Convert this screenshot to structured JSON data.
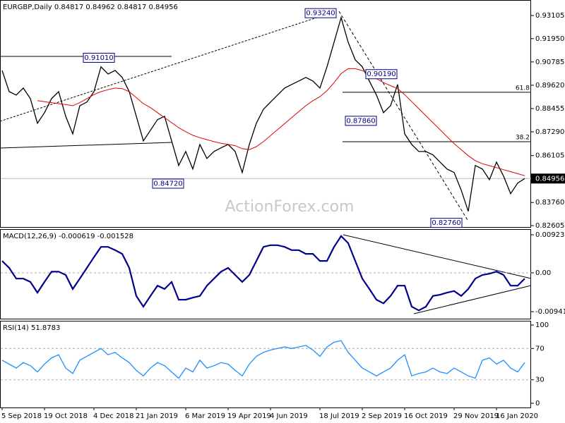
{
  "chart_data": [
    {
      "type": "line",
      "title": "EURGBP,Daily  0.84817 0.84962 0.84817 0.84956",
      "watermark": "ActionForex.com",
      "categories": [
        "5 Sep 2018",
        null,
        null,
        null,
        null,
        null,
        "19 Oct 2018",
        null,
        null,
        null,
        null,
        null,
        null,
        "4 Dec 2018",
        null,
        null,
        null,
        null,
        null,
        "21 Jan 2019",
        null,
        null,
        null,
        null,
        null,
        null,
        "6 Mar 2019",
        null,
        null,
        null,
        null,
        null,
        "19 Apr 2019",
        null,
        null,
        null,
        null,
        null,
        "4 Jun 2019",
        null,
        null,
        null,
        null,
        null,
        null,
        "18 Jul 2019",
        null,
        null,
        null,
        null,
        null,
        "2 Sep 2019",
        null,
        null,
        null,
        null,
        null,
        "16 Oct 2019",
        null,
        null,
        null,
        null,
        null,
        null,
        "29 Nov 2019",
        null,
        null,
        null,
        null,
        null,
        "16 Jan 2020",
        null,
        null,
        null,
        null
      ],
      "series": [
        {
          "color": "#000000",
          "values": [
            0.9036,
            0.893,
            0.8913,
            0.8948,
            0.8895,
            0.8772,
            0.8825,
            0.8895,
            0.893,
            0.8807,
            0.8719,
            0.886,
            0.8878,
            0.893,
            0.9054,
            0.9018,
            0.9036,
            0.9001,
            0.893,
            0.8807,
            0.8684,
            0.8737,
            0.879,
            0.8807,
            0.8684,
            0.8561,
            0.8631,
            0.8543,
            0.8666,
            0.8596,
            0.8631,
            0.8649,
            0.8666,
            0.8631,
            0.8526,
            0.8666,
            0.8772,
            0.8842,
            0.8878,
            0.8913,
            0.8948,
            0.8966,
            0.8983,
            0.9001,
            0.8983,
            0.8948,
            0.9054,
            0.9177,
            0.93,
            0.9177,
            0.9089,
            0.9054,
            0.8983,
            0.8913,
            0.8825,
            0.886,
            0.8966,
            0.8719,
            0.8666,
            0.8631,
            0.8631,
            0.8614,
            0.8578,
            0.8543,
            0.8526,
            0.8438,
            0.8332,
            0.8561,
            0.8543,
            0.849,
            0.8578,
            0.8508,
            0.842,
            0.8473,
            0.8496
          ]
        },
        {
          "color": "#e00000",
          "values": [
            null,
            null,
            null,
            null,
            null,
            0.8885,
            0.888,
            0.8875,
            0.887,
            0.8865,
            0.886,
            0.8875,
            0.8895,
            0.8915,
            0.893,
            0.894,
            0.8948,
            0.8945,
            0.893,
            0.89,
            0.887,
            0.885,
            0.8825,
            0.88,
            0.8775,
            0.875,
            0.873,
            0.8712,
            0.87,
            0.869,
            0.868,
            0.8672,
            0.8666,
            0.866,
            0.8645,
            0.864,
            0.8655,
            0.868,
            0.871,
            0.874,
            0.877,
            0.88,
            0.883,
            0.886,
            0.8885,
            0.8905,
            0.8935,
            0.8975,
            0.902,
            0.9045,
            0.9045,
            0.9035,
            0.902,
            0.8995,
            0.8975,
            0.896,
            0.8945,
            0.8915,
            0.888,
            0.8845,
            0.881,
            0.8775,
            0.874,
            0.8705,
            0.867,
            0.864,
            0.861,
            0.8585,
            0.857,
            0.856,
            0.855,
            0.854,
            0.853,
            0.852,
            0.851
          ]
        }
      ],
      "ylim": [
        0.82535,
        0.9388
      ],
      "yticks": [
        0.93105,
        {
          "value": 0.9195,
          "label": "0.91950"
        },
        0.90785,
        {
          "value": 0.8962,
          "label": "0.89620"
        },
        0.88455,
        {
          "value": 0.8729,
          "label": "0.87290"
        },
        0.86105,
        {
          "value": 0.8376,
          "label": "0.83760"
        },
        0.82605
      ],
      "last": 0.84956,
      "annotations": [
        {
          "value": 0.9324,
          "label": "0.93240"
        },
        {
          "value": 0.9101,
          "label": "0.91010"
        },
        {
          "value": 0.9019,
          "label": "0.90190"
        },
        {
          "value": 0.8786,
          "label": "0.87860"
        },
        {
          "value": 0.8472,
          "label": "0.84720"
        },
        {
          "value": 0.8276,
          "label": "0.82760"
        }
      ],
      "levels": [
        {
          "label": "61.8",
          "value": 0.8927
        },
        {
          "label": "38.2",
          "value": 0.868
        }
      ]
    },
    {
      "type": "line",
      "title": "MACD(12,26,9) -0.000619 -0.001528",
      "series": [
        {
          "color": "#00008b",
          "values": [
            0.0029,
            0.0012,
            -0.0014,
            -0.0014,
            -0.0022,
            -0.0048,
            -0.0022,
            0.0003,
            0.0003,
            -0.0005,
            -0.0039,
            -0.0014,
            0.0012,
            0.0038,
            0.0063,
            0.0063,
            0.0055,
            0.0046,
            0.0012,
            -0.0056,
            -0.0082,
            -0.0056,
            -0.0031,
            -0.0039,
            -0.0022,
            -0.0065,
            -0.0065,
            -0.006,
            -0.0056,
            -0.0031,
            -0.0014,
            0.0003,
            0.0012,
            -0.0005,
            -0.0022,
            -0.0005,
            0.0029,
            0.0063,
            0.0067,
            0.0067,
            0.0063,
            0.0055,
            0.0055,
            0.0046,
            0.0046,
            0.0029,
            0.0029,
            0.0063,
            0.0089,
            0.0072,
            0.0029,
            -0.0014,
            -0.0039,
            -0.0065,
            -0.0074,
            -0.0056,
            -0.0031,
            -0.0031,
            -0.0082,
            -0.0091,
            -0.0082,
            -0.0056,
            -0.0053,
            -0.0048,
            -0.0044,
            -0.0056,
            -0.0039,
            -0.0014,
            -0.0005,
            -0.0002,
            0.0003,
            -0.0005,
            -0.0031,
            -0.0031,
            -0.0014
          ]
        }
      ],
      "ylim": [
        -0.0111,
        0.0106
      ],
      "yticks": [
        0.009237,
        {
          "value": 0,
          "label": "0.00"
        },
        -0.009413
      ]
    },
    {
      "type": "line",
      "title": "RSI(14) 51.8783",
      "series": [
        {
          "color": "#1e90ff",
          "values": [
            55,
            50,
            45,
            52,
            48,
            40,
            50,
            58,
            62,
            45,
            38,
            55,
            60,
            65,
            70,
            62,
            65,
            58,
            52,
            42,
            35,
            45,
            52,
            48,
            40,
            32,
            45,
            40,
            55,
            45,
            48,
            52,
            50,
            42,
            35,
            50,
            60,
            65,
            68,
            70,
            72,
            70,
            72,
            74,
            68,
            60,
            72,
            78,
            80,
            65,
            55,
            45,
            40,
            35,
            40,
            45,
            55,
            62,
            35,
            38,
            40,
            45,
            40,
            38,
            45,
            40,
            35,
            32,
            55,
            58,
            50,
            55,
            45,
            40,
            52
          ]
        }
      ],
      "ylim": [
        -5.4,
        105.4
      ],
      "yticks": [
        100,
        70,
        30,
        0
      ]
    }
  ]
}
